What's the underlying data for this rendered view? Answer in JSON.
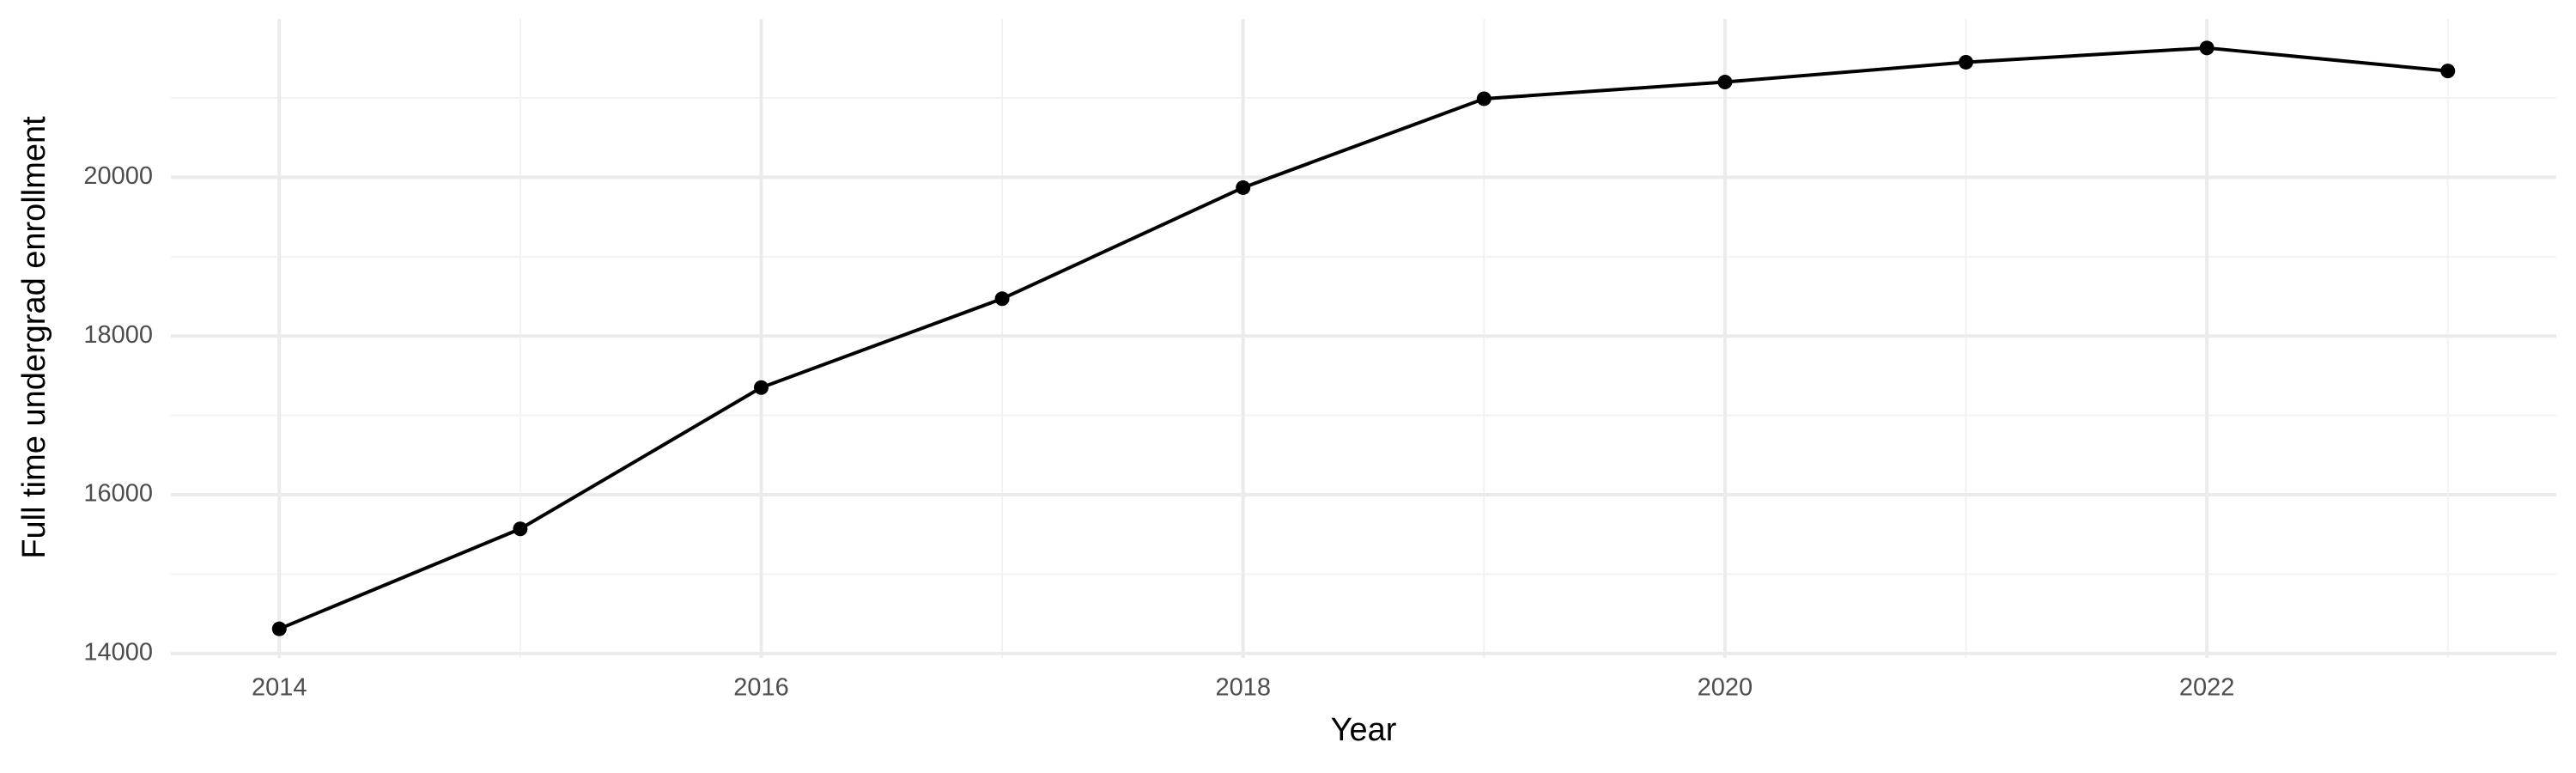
{
  "chart_data": {
    "type": "line",
    "x_label": "Year",
    "y_label": "Full time undergrad enrollment",
    "x": [
      2014,
      2015,
      2016,
      2017,
      2018,
      2019,
      2020,
      2021,
      2022,
      2023
    ],
    "series": [
      {
        "name": "Full time undergrad enrollment",
        "color": "#000000",
        "values": [
          14310,
          15570,
          17350,
          18470,
          19870,
          20990,
          21200,
          21450,
          21630,
          21340
        ]
      }
    ],
    "xlim": [
      2013.55,
      2023.45
    ],
    "xticks": [
      2014,
      2016,
      2018,
      2020,
      2022
    ],
    "xminorticks": [
      2015,
      2017,
      2019,
      2021,
      2023
    ],
    "ylim": [
      13944,
      21996
    ],
    "yticks": [
      14000,
      16000,
      18000,
      20000
    ],
    "yminorticks": [
      15000,
      17000,
      19000,
      21000
    ],
    "grid": true
  }
}
